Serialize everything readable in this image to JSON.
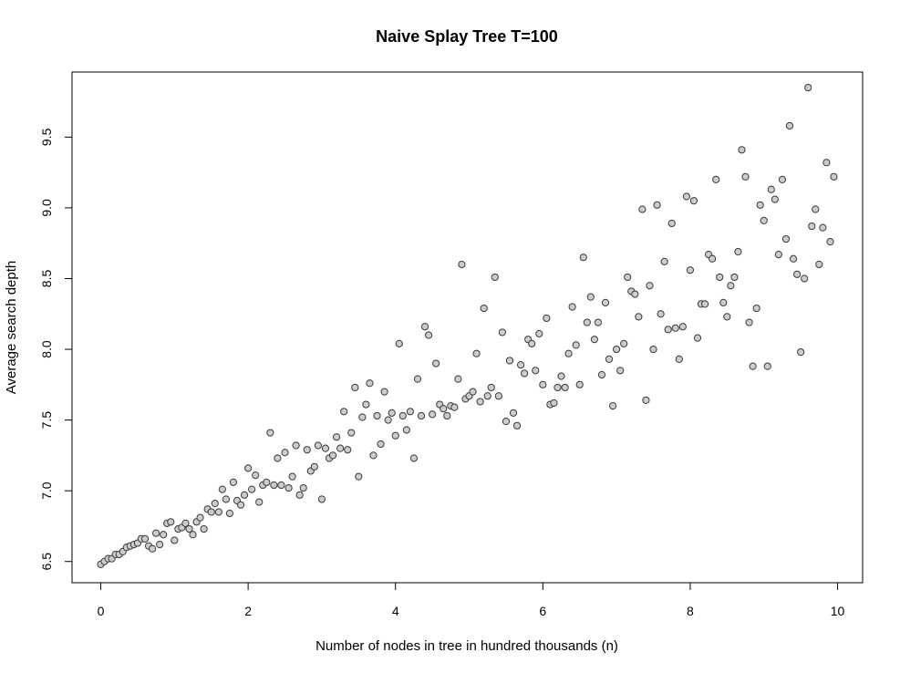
{
  "chart_data": {
    "type": "scatter",
    "title": "Naive Splay Tree T=100",
    "xlabel": "Number of nodes in tree in hundred thousands (n)",
    "ylabel": "Average search depth",
    "xlim": [
      -0.39,
      10.34
    ],
    "ylim": [
      6.35,
      9.96
    ],
    "xticks": [
      0,
      2,
      4,
      6,
      8,
      10
    ],
    "yticks": [
      6.5,
      7.0,
      7.5,
      8.0,
      8.5,
      9.0,
      9.5
    ],
    "ytick_labels": [
      "6.5",
      "7.0",
      "7.5",
      "8.0",
      "8.5",
      "9.0",
      "9.5"
    ],
    "grid": false,
    "legend": "none",
    "point_fill": "#cccccc",
    "point_stroke": "#3a3a3a",
    "x": [
      0.0,
      0.05,
      0.1,
      0.15,
      0.2,
      0.25,
      0.3,
      0.35,
      0.4,
      0.45,
      0.5,
      0.55,
      0.6,
      0.65,
      0.7,
      0.75,
      0.8,
      0.85,
      0.9,
      0.95,
      1.0,
      1.05,
      1.1,
      1.15,
      1.2,
      1.25,
      1.3,
      1.35,
      1.4,
      1.45,
      1.5,
      1.55,
      1.6,
      1.65,
      1.7,
      1.75,
      1.8,
      1.85,
      1.9,
      1.95,
      2.0,
      2.05,
      2.1,
      2.15,
      2.2,
      2.25,
      2.3,
      2.35,
      2.4,
      2.45,
      2.5,
      2.55,
      2.6,
      2.65,
      2.7,
      2.75,
      2.8,
      2.85,
      2.9,
      2.95,
      3.0,
      3.05,
      3.1,
      3.15,
      3.2,
      3.25,
      3.3,
      3.35,
      3.4,
      3.45,
      3.5,
      3.55,
      3.6,
      3.65,
      3.7,
      3.75,
      3.8,
      3.85,
      3.9,
      3.95,
      4.0,
      4.05,
      4.1,
      4.15,
      4.2,
      4.25,
      4.3,
      4.35,
      4.4,
      4.45,
      4.5,
      4.55,
      4.6,
      4.65,
      4.7,
      4.75,
      4.8,
      4.85,
      4.9,
      4.95,
      5.0,
      5.05,
      5.1,
      5.15,
      5.2,
      5.25,
      5.3,
      5.35,
      5.4,
      5.45,
      5.5,
      5.55,
      5.6,
      5.65,
      5.7,
      5.75,
      5.8,
      5.85,
      5.9,
      5.95,
      6.0,
      6.05,
      6.1,
      6.15,
      6.2,
      6.25,
      6.3,
      6.35,
      6.4,
      6.45,
      6.5,
      6.55,
      6.6,
      6.65,
      6.7,
      6.75,
      6.8,
      6.85,
      6.9,
      6.95,
      7.0,
      7.05,
      7.1,
      7.15,
      7.2,
      7.25,
      7.3,
      7.35,
      7.4,
      7.45,
      7.5,
      7.55,
      7.6,
      7.65,
      7.7,
      7.75,
      7.8,
      7.85,
      7.9,
      7.95,
      8.0,
      8.05,
      8.1,
      8.15,
      8.2,
      8.25,
      8.3,
      8.35,
      8.4,
      8.45,
      8.5,
      8.55,
      8.6,
      8.65,
      8.7,
      8.75,
      8.8,
      8.85,
      8.9,
      8.95,
      9.0,
      9.05,
      9.1,
      9.15,
      9.2,
      9.25,
      9.3,
      9.35,
      9.4,
      9.45,
      9.5,
      9.55,
      9.6,
      9.65,
      9.7,
      9.75,
      9.8,
      9.85,
      9.9,
      9.95
    ],
    "y": [
      6.48,
      6.5,
      6.52,
      6.52,
      6.55,
      6.55,
      6.57,
      6.6,
      6.61,
      6.62,
      6.63,
      6.66,
      6.66,
      6.61,
      6.59,
      6.7,
      6.62,
      6.69,
      6.77,
      6.78,
      6.65,
      6.73,
      6.74,
      6.77,
      6.73,
      6.69,
      6.78,
      6.81,
      6.73,
      6.87,
      6.85,
      6.91,
      6.85,
      7.01,
      6.94,
      6.84,
      7.06,
      6.93,
      6.9,
      6.97,
      7.16,
      7.01,
      7.11,
      6.92,
      7.04,
      7.06,
      7.41,
      7.04,
      7.23,
      7.04,
      7.27,
      7.02,
      7.1,
      7.32,
      6.97,
      7.02,
      7.29,
      7.14,
      7.17,
      7.32,
      6.94,
      7.3,
      7.23,
      7.25,
      7.38,
      7.3,
      7.56,
      7.29,
      7.41,
      7.73,
      7.1,
      7.52,
      7.61,
      7.76,
      7.25,
      7.53,
      7.33,
      7.7,
      7.5,
      7.55,
      7.39,
      8.04,
      7.53,
      7.43,
      7.56,
      7.23,
      7.79,
      7.53,
      8.16,
      8.1,
      7.54,
      7.9,
      7.61,
      7.58,
      7.53,
      7.6,
      7.59,
      7.79,
      8.6,
      7.65,
      7.67,
      7.7,
      7.97,
      7.63,
      8.29,
      7.67,
      7.73,
      8.51,
      7.67,
      8.12,
      7.49,
      7.92,
      7.55,
      7.46,
      7.89,
      7.83,
      8.07,
      8.04,
      7.85,
      8.11,
      7.75,
      8.22,
      7.61,
      7.62,
      7.73,
      7.81,
      7.73,
      7.97,
      8.3,
      8.03,
      7.75,
      8.65,
      8.19,
      8.37,
      8.07,
      8.19,
      7.82,
      8.33,
      7.93,
      7.6,
      8.0,
      7.85,
      8.04,
      8.51,
      8.41,
      8.39,
      8.23,
      8.99,
      7.64,
      8.45,
      8.0,
      9.02,
      8.25,
      8.62,
      8.14,
      8.89,
      8.15,
      7.93,
      8.16,
      9.08,
      8.56,
      9.05,
      8.08,
      8.32,
      8.32,
      8.67,
      8.64,
      9.2,
      8.51,
      8.33,
      8.23,
      8.45,
      8.51,
      8.69,
      9.41,
      9.22,
      8.19,
      7.88,
      8.29,
      9.02,
      8.91,
      7.88,
      9.13,
      9.06,
      8.67,
      9.2,
      8.78,
      9.58,
      8.64,
      8.53,
      7.98,
      8.5,
      9.85,
      8.87,
      8.99,
      8.6,
      8.86,
      9.32,
      8.76,
      9.22
    ]
  }
}
